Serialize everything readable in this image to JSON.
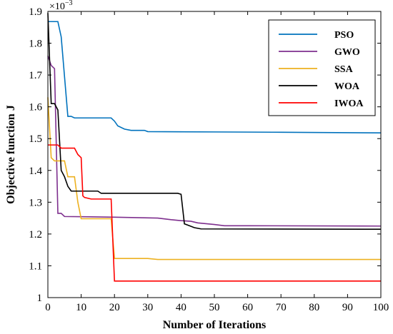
{
  "chart_data": {
    "type": "line",
    "xlabel": "Number of Iterations",
    "ylabel": "Objective function J",
    "y_multiplier_base": "×10",
    "y_multiplier_exp": "−3",
    "xlim": [
      0,
      100
    ],
    "ylim": [
      1.0,
      1.9
    ],
    "x_ticks": [
      0,
      10,
      20,
      30,
      40,
      50,
      60,
      70,
      80,
      90,
      100
    ],
    "y_ticks": [
      1,
      1.1,
      1.2,
      1.3,
      1.4,
      1.5,
      1.6,
      1.7,
      1.8,
      1.9
    ],
    "y_tick_labels": [
      "1",
      "1.1",
      "1.2",
      "1.3",
      "1.4",
      "1.5",
      "1.6",
      "1.7",
      "1.8",
      "1.9"
    ],
    "grid": false,
    "legend_position": "top-right",
    "series": [
      {
        "name": "PSO",
        "color": "#0072BD",
        "points": [
          [
            0,
            1.868
          ],
          [
            3,
            1.868
          ],
          [
            4,
            1.82
          ],
          [
            6,
            1.57
          ],
          [
            7,
            1.57
          ],
          [
            8,
            1.565
          ],
          [
            19,
            1.565
          ],
          [
            20,
            1.555
          ],
          [
            21,
            1.54
          ],
          [
            23,
            1.53
          ],
          [
            25,
            1.526
          ],
          [
            29,
            1.526
          ],
          [
            30,
            1.522
          ],
          [
            50,
            1.521
          ],
          [
            70,
            1.52
          ],
          [
            100,
            1.518
          ]
        ]
      },
      {
        "name": "GWO",
        "color": "#7E2F8E",
        "points": [
          [
            0,
            1.76
          ],
          [
            1,
            1.73
          ],
          [
            2,
            1.72
          ],
          [
            3,
            1.265
          ],
          [
            4,
            1.265
          ],
          [
            5,
            1.255
          ],
          [
            20,
            1.253
          ],
          [
            33,
            1.25
          ],
          [
            37,
            1.245
          ],
          [
            40,
            1.242
          ],
          [
            43,
            1.24
          ],
          [
            45,
            1.235
          ],
          [
            50,
            1.23
          ],
          [
            53,
            1.226
          ],
          [
            60,
            1.226
          ],
          [
            100,
            1.225
          ]
        ]
      },
      {
        "name": "SSA",
        "color": "#EDB120",
        "points": [
          [
            0,
            1.63
          ],
          [
            1,
            1.44
          ],
          [
            2,
            1.43
          ],
          [
            3,
            1.43
          ],
          [
            4,
            1.43
          ],
          [
            5,
            1.43
          ],
          [
            6,
            1.38
          ],
          [
            8,
            1.38
          ],
          [
            9,
            1.3
          ],
          [
            10,
            1.248
          ],
          [
            19,
            1.248
          ],
          [
            20,
            1.123
          ],
          [
            30,
            1.123
          ],
          [
            33,
            1.12
          ],
          [
            60,
            1.12
          ],
          [
            100,
            1.12
          ]
        ]
      },
      {
        "name": "WOA",
        "color": "#000000",
        "points": [
          [
            0,
            1.895
          ],
          [
            1,
            1.61
          ],
          [
            2,
            1.61
          ],
          [
            3,
            1.59
          ],
          [
            4,
            1.4
          ],
          [
            5,
            1.38
          ],
          [
            6,
            1.35
          ],
          [
            7,
            1.335
          ],
          [
            15,
            1.335
          ],
          [
            16,
            1.328
          ],
          [
            39,
            1.328
          ],
          [
            40,
            1.325
          ],
          [
            41,
            1.232
          ],
          [
            42,
            1.228
          ],
          [
            44,
            1.22
          ],
          [
            46,
            1.216
          ],
          [
            100,
            1.215
          ]
        ]
      },
      {
        "name": "IWOA",
        "color": "#FF0000",
        "points": [
          [
            0,
            1.48
          ],
          [
            3,
            1.48
          ],
          [
            4,
            1.47
          ],
          [
            8,
            1.47
          ],
          [
            9,
            1.45
          ],
          [
            10,
            1.44
          ],
          [
            10.5,
            1.32
          ],
          [
            11,
            1.315
          ],
          [
            13,
            1.31
          ],
          [
            19,
            1.31
          ],
          [
            20,
            1.052
          ],
          [
            100,
            1.052
          ]
        ]
      }
    ]
  }
}
